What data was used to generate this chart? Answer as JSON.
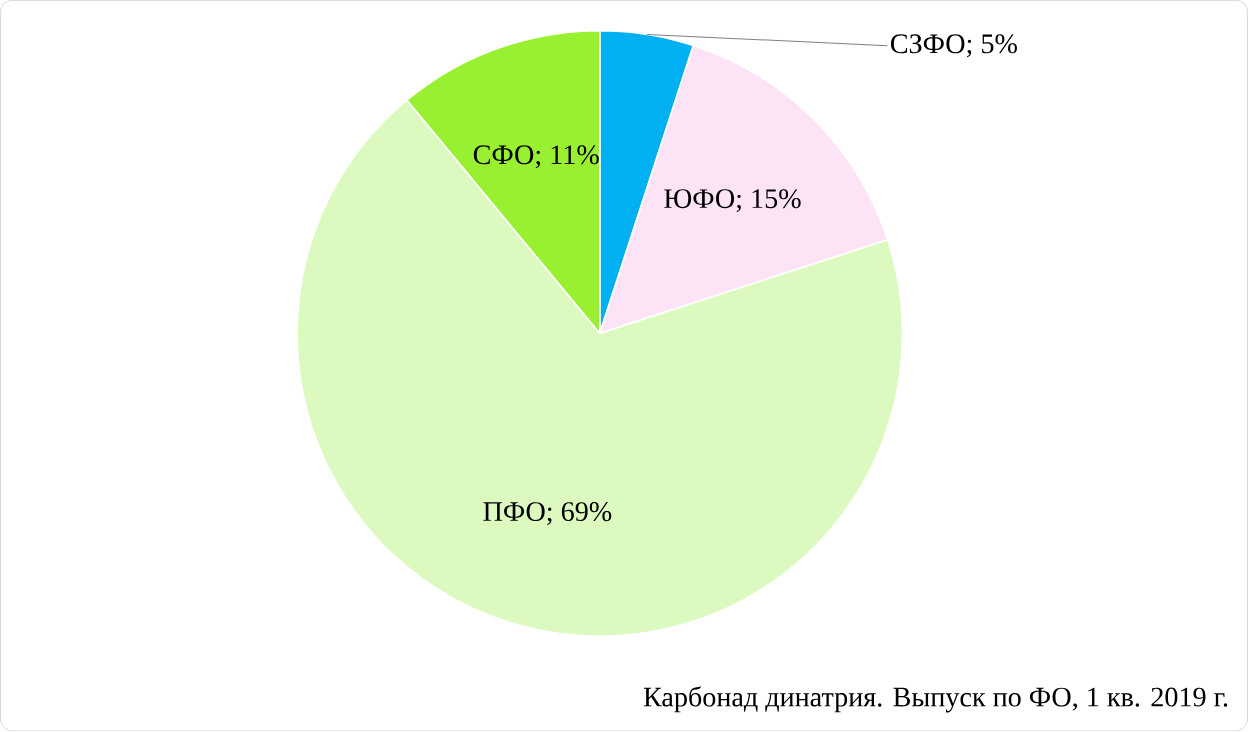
{
  "chart_data": {
    "type": "pie",
    "categories": [
      "СЗФО; 5%",
      "ЮФО; 15%",
      "ПФО; 69%",
      "СФО; 11%"
    ],
    "values": [
      5,
      15,
      69,
      11
    ],
    "colors": [
      "#00b0f0",
      "#fce4f6",
      "#dcfac0",
      "#99f030"
    ],
    "annotations": [
      "Карбонад динатрия. Выпуск по ФО,  1 кв. 2019 г."
    ]
  }
}
